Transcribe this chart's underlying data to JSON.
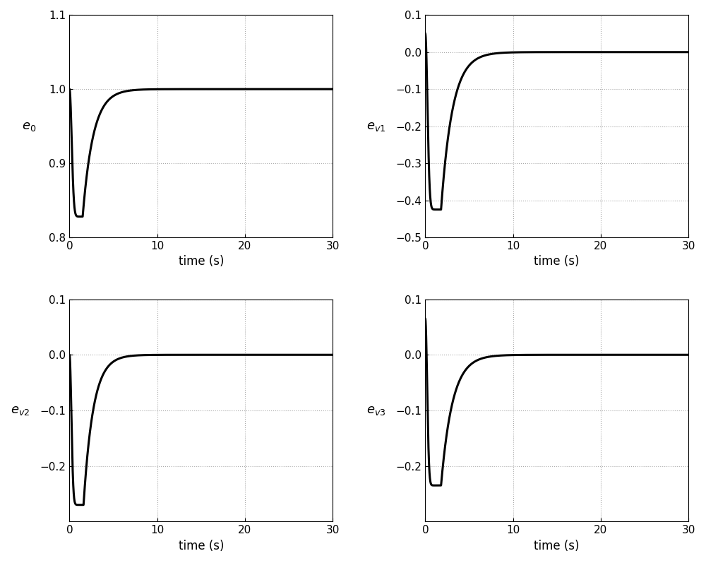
{
  "subplots": [
    {
      "ylabel_latex": "$e_0$",
      "ylim": [
        0.8,
        1.1
      ],
      "yticks": [
        0.8,
        0.9,
        1.0,
        1.1
      ],
      "init_val": 1.0,
      "dip_time": 1.5,
      "dip_val": 0.828,
      "tau_drop": 0.35,
      "tau_recover": 1.2,
      "final_val": 1.0
    },
    {
      "ylabel_latex": "$e_{v1}$",
      "ylim": [
        -0.5,
        0.1
      ],
      "yticks": [
        -0.5,
        -0.4,
        -0.3,
        -0.2,
        -0.1,
        0.0,
        0.1
      ],
      "init_val": 0.05,
      "dip_time": 1.8,
      "dip_val": -0.425,
      "tau_drop": 0.35,
      "tau_recover": 1.3,
      "final_val": 0.0
    },
    {
      "ylabel_latex": "$e_{v2}$",
      "ylim": [
        -0.3,
        0.1
      ],
      "yticks": [
        -0.2,
        -0.1,
        0.0,
        0.1
      ],
      "init_val": 0.0,
      "dip_time": 1.6,
      "dip_val": -0.27,
      "tau_drop": 0.3,
      "tau_recover": 1.1,
      "final_val": 0.0
    },
    {
      "ylabel_latex": "$e_{v3}$",
      "ylim": [
        -0.3,
        0.1
      ],
      "yticks": [
        -0.2,
        -0.1,
        0.0,
        0.1
      ],
      "init_val": 0.065,
      "dip_time": 1.8,
      "dip_val": -0.235,
      "tau_drop": 0.3,
      "tau_recover": 1.3,
      "final_val": 0.0
    }
  ],
  "xlim": [
    0,
    30
  ],
  "xticks": [
    0,
    10,
    20,
    30
  ],
  "xlabel": "time (s)",
  "line_color": "#000000",
  "line_width": 2.2,
  "grid_color": "#aaaaaa",
  "grid_style": ":",
  "grid_lw": 0.8,
  "bg_color": "#ffffff",
  "figsize": [
    10.0,
    7.97
  ],
  "dpi": 100,
  "tick_fontsize": 11,
  "label_fontsize": 13,
  "xlabel_fontsize": 12
}
